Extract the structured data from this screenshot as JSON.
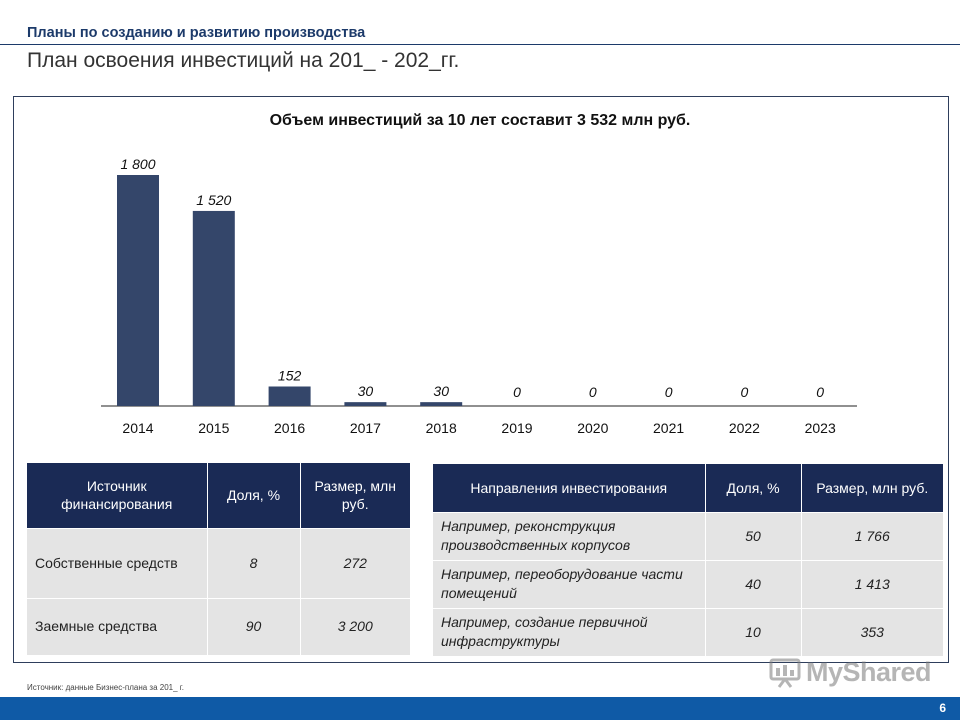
{
  "header": {
    "subtitle": "Планы по созданию и развитию производства",
    "title": "План освоения инвестиций на 201_ - 202_гг."
  },
  "chart_data": {
    "type": "bar",
    "title": "Объем инвестиций за 10 лет составит 3 532 млн руб.",
    "categories": [
      "2014",
      "2015",
      "2016",
      "2017",
      "2018",
      "2019",
      "2020",
      "2021",
      "2022",
      "2023"
    ],
    "values": [
      1800,
      1520,
      152,
      30,
      30,
      0,
      0,
      0,
      0,
      0
    ],
    "value_labels": [
      "1 800",
      "1 520",
      "152",
      "30",
      "30",
      "0",
      "0",
      "0",
      "0",
      "0"
    ],
    "ylim": [
      0,
      1800
    ],
    "bar_color": "#34466a",
    "grid": false,
    "legend": "none"
  },
  "financing_table": {
    "headers": [
      "Источник финансирования",
      "Доля, %",
      "Размер, млн руб."
    ],
    "rows": [
      [
        "Собственные средств",
        "8",
        "272"
      ],
      [
        "Заемные средства",
        "90",
        "3 200"
      ]
    ]
  },
  "directions_table": {
    "headers": [
      "Направления инвестирования",
      "Доля, %",
      "Размер, млн руб."
    ],
    "rows": [
      [
        "Например, реконструкция производственных корпусов",
        "50",
        "1 766"
      ],
      [
        "Например, переоборудование части помещений",
        "40",
        "1 413"
      ],
      [
        "Например, создание первичной инфраструктуры",
        "10",
        "353"
      ]
    ]
  },
  "footer": {
    "source": "Источник: данные Бизнес-плана за 201_ г.",
    "page_number": "6"
  },
  "watermark": {
    "text": "MyShared",
    "icon": "presentation-board-icon"
  },
  "colors": {
    "header_blue": "#1c3a6a",
    "table_header": "#1a2a55",
    "table_cell": "#e4e4e4",
    "footer_blue": "#0f5aa6"
  }
}
